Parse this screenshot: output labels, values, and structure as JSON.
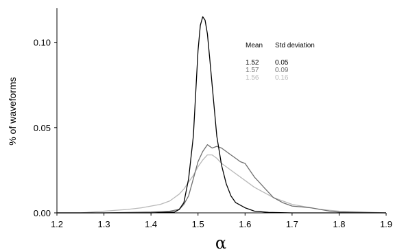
{
  "chart_data": {
    "type": "line",
    "xlabel": "α",
    "ylabel": "% of waveforms",
    "xlim": [
      1.2,
      1.9
    ],
    "ylim": [
      0.0,
      0.12
    ],
    "x_ticks": [
      "1.2",
      "1.3",
      "1.4",
      "1.5",
      "1.6",
      "1.7",
      "1.8",
      "1.9"
    ],
    "y_ticks": [
      "0.00",
      "0.05",
      "0.10"
    ],
    "grid": false,
    "legend_table": {
      "header": [
        "Mean",
        "Std deviation"
      ],
      "rows": [
        {
          "mean": "1.52",
          "std": "0.05",
          "color": "#000000"
        },
        {
          "mean": "1.57",
          "std": "0.09",
          "color": "#6e6e6e"
        },
        {
          "mean": "1.56",
          "std": "0.16",
          "color": "#b8b8b8"
        }
      ]
    },
    "series": [
      {
        "color": "#b8b8b8",
        "x": [
          1.2,
          1.25,
          1.3,
          1.35,
          1.38,
          1.4,
          1.42,
          1.44,
          1.46,
          1.47,
          1.48,
          1.49,
          1.5,
          1.51,
          1.52,
          1.53,
          1.54,
          1.55,
          1.56,
          1.57,
          1.58,
          1.6,
          1.62,
          1.64,
          1.66,
          1.68,
          1.7,
          1.72,
          1.74,
          1.76,
          1.8,
          1.85,
          1.9
        ],
        "y": [
          0.0,
          0.0,
          0.001,
          0.002,
          0.003,
          0.004,
          0.005,
          0.007,
          0.011,
          0.014,
          0.018,
          0.022,
          0.027,
          0.031,
          0.034,
          0.034,
          0.032,
          0.029,
          0.027,
          0.025,
          0.023,
          0.019,
          0.015,
          0.012,
          0.009,
          0.007,
          0.005,
          0.004,
          0.003,
          0.002,
          0.001,
          0.0005,
          0.0
        ]
      },
      {
        "color": "#6e6e6e",
        "x": [
          1.2,
          1.3,
          1.4,
          1.44,
          1.46,
          1.47,
          1.48,
          1.49,
          1.5,
          1.51,
          1.52,
          1.53,
          1.54,
          1.55,
          1.56,
          1.57,
          1.58,
          1.59,
          1.6,
          1.61,
          1.62,
          1.63,
          1.64,
          1.65,
          1.66,
          1.68,
          1.7,
          1.72,
          1.74,
          1.76,
          1.78,
          1.8,
          1.9
        ],
        "y": [
          0.0,
          0.0,
          0.0005,
          0.001,
          0.002,
          0.005,
          0.01,
          0.02,
          0.03,
          0.036,
          0.04,
          0.038,
          0.039,
          0.038,
          0.036,
          0.034,
          0.032,
          0.03,
          0.029,
          0.025,
          0.021,
          0.018,
          0.015,
          0.012,
          0.009,
          0.006,
          0.004,
          0.0035,
          0.003,
          0.002,
          0.001,
          0.0005,
          0.0
        ]
      },
      {
        "color": "#000000",
        "x": [
          1.2,
          1.4,
          1.45,
          1.46,
          1.47,
          1.48,
          1.49,
          1.495,
          1.5,
          1.505,
          1.51,
          1.515,
          1.52,
          1.525,
          1.53,
          1.535,
          1.54,
          1.55,
          1.56,
          1.57,
          1.58,
          1.6,
          1.62,
          1.65,
          1.7,
          1.9
        ],
        "y": [
          0.0,
          0.0,
          0.0005,
          0.002,
          0.006,
          0.02,
          0.045,
          0.07,
          0.095,
          0.11,
          0.115,
          0.113,
          0.105,
          0.09,
          0.075,
          0.06,
          0.045,
          0.028,
          0.017,
          0.01,
          0.006,
          0.003,
          0.001,
          0.0003,
          0.0,
          0.0
        ]
      }
    ]
  }
}
